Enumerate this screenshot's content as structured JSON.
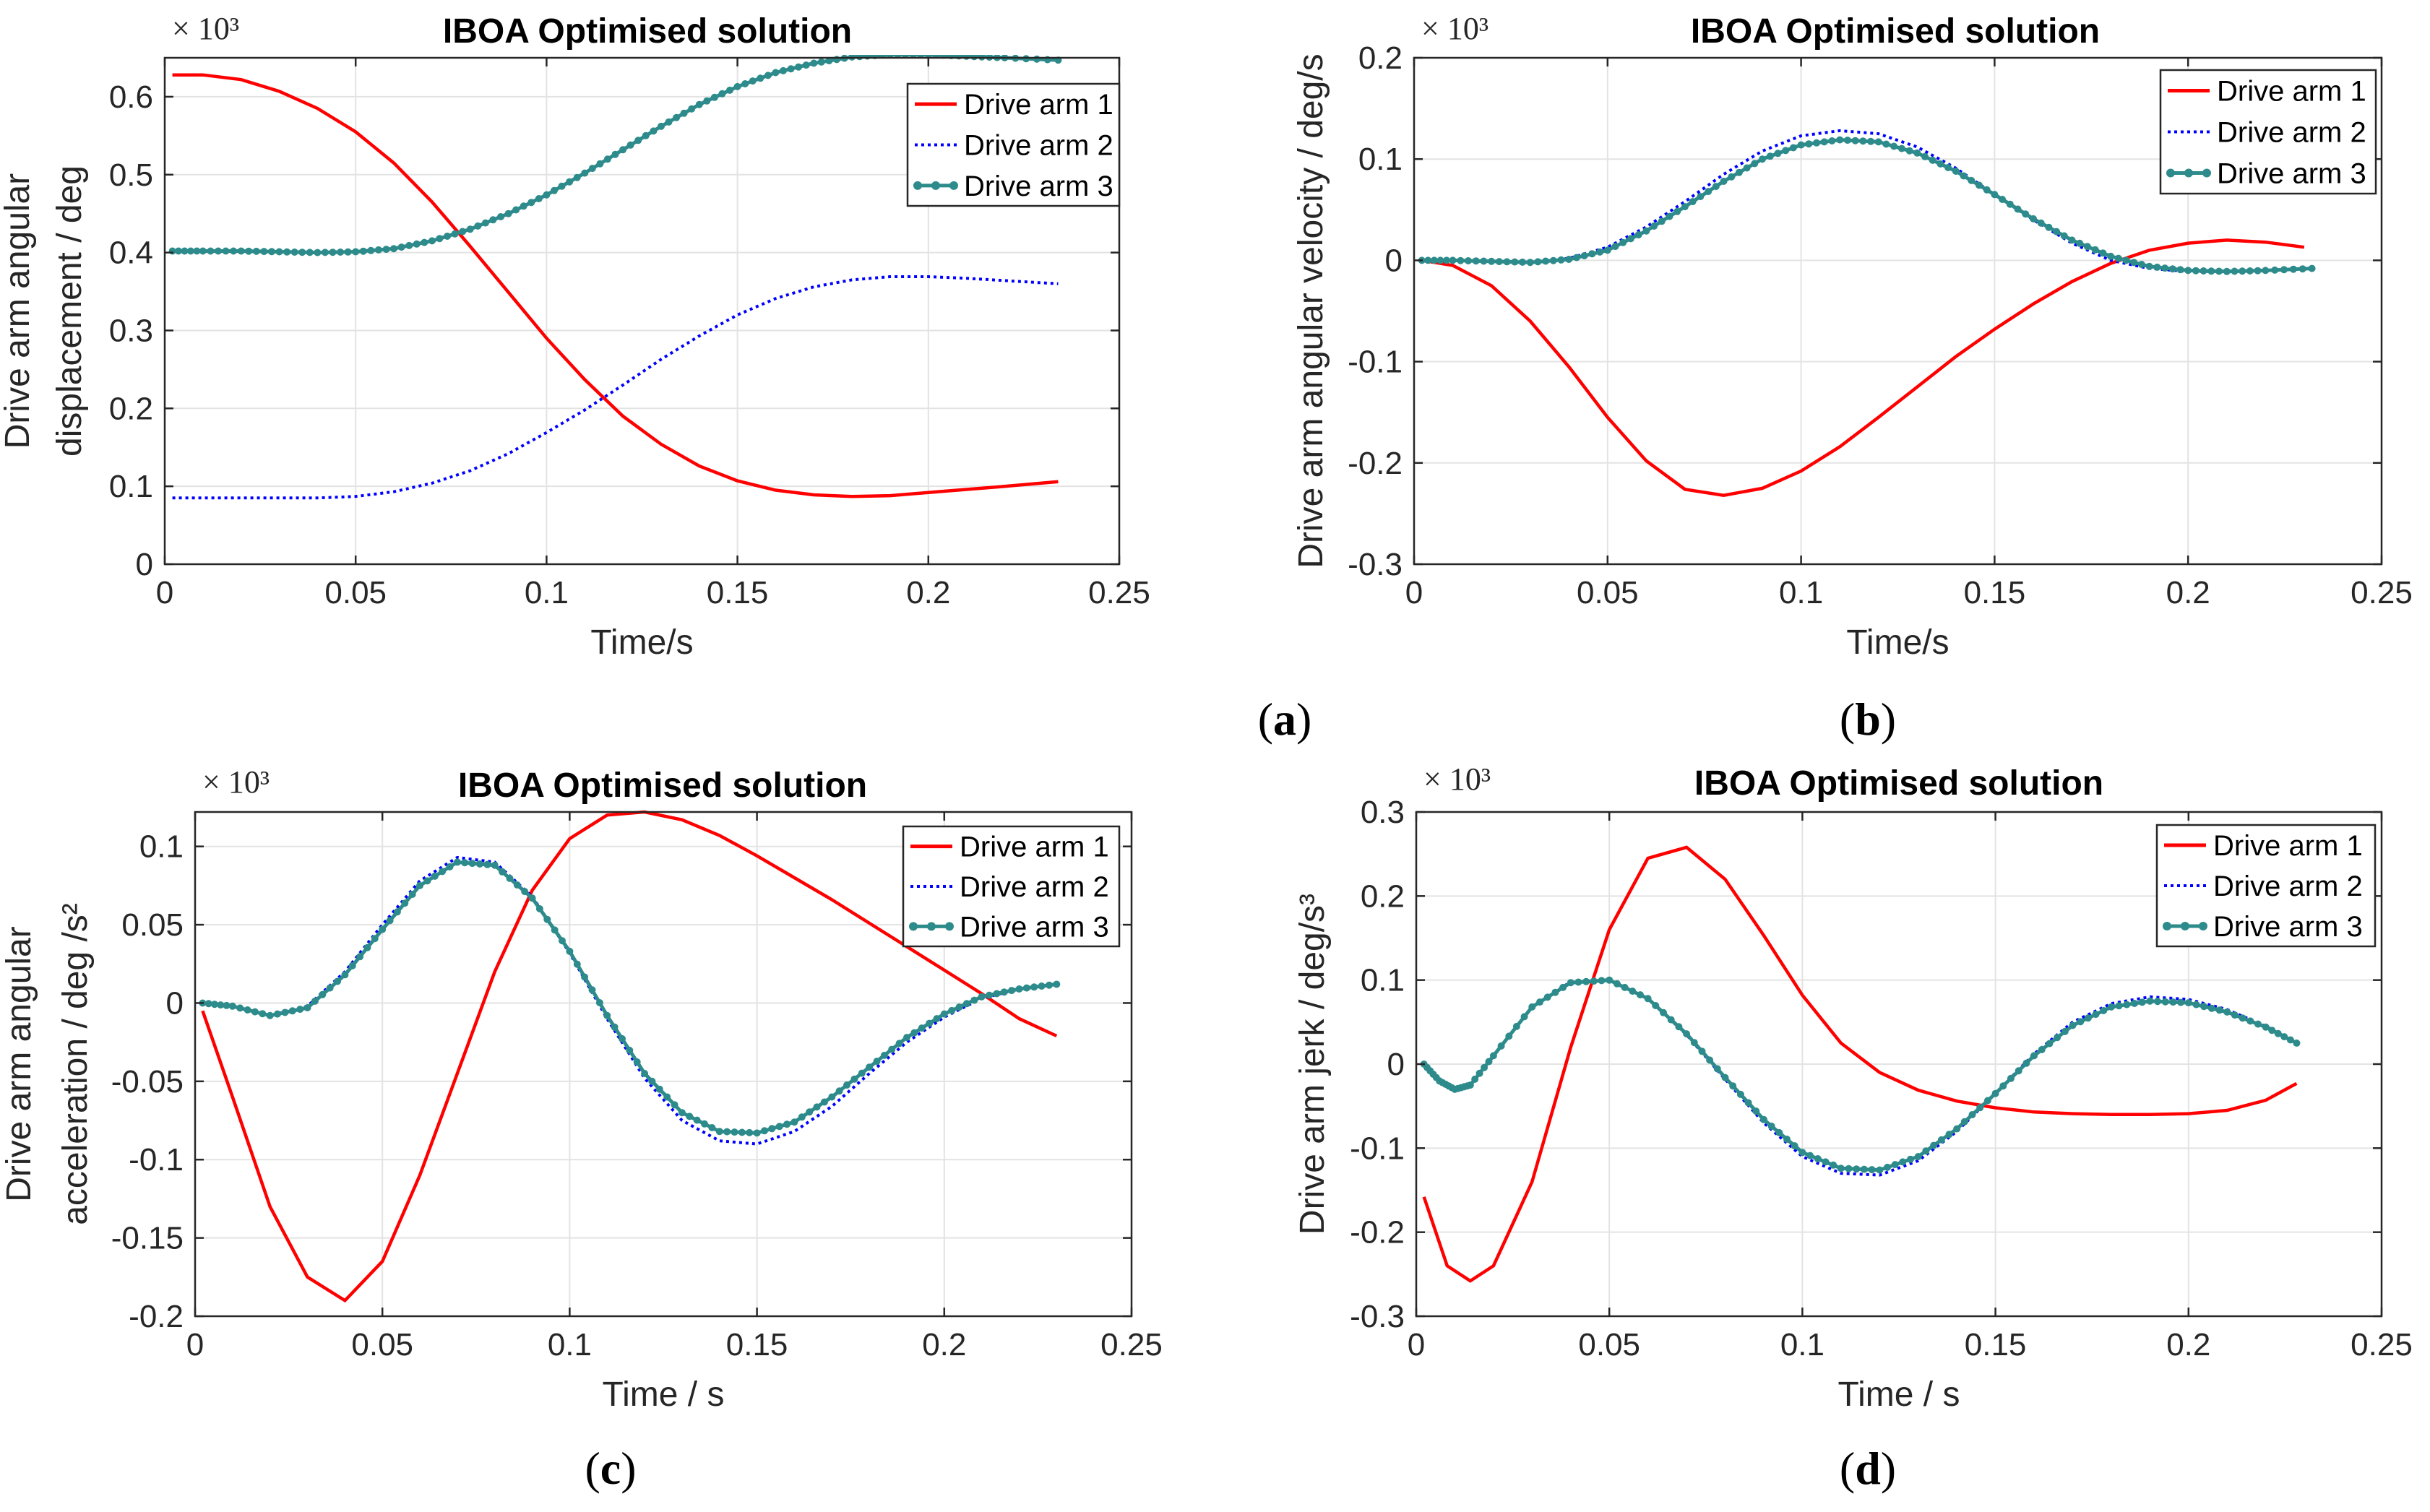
{
  "figure": {
    "panel_labels": [
      "(a)",
      "(b)",
      "(c)",
      "(d)"
    ]
  },
  "chart_data": [
    {
      "type": "line",
      "title": "IBOA  Optimised solution",
      "multiplier": "× 10³",
      "xlabel": "Time/s",
      "ylabel": [
        "Drive arm angular",
        "displacement / deg"
      ],
      "xlim": [
        0,
        0.25
      ],
      "ylim": [
        0,
        0.65
      ],
      "xticks": [
        "0",
        "0.05",
        "0.1",
        "0.15",
        "0.2",
        "0.25"
      ],
      "xtick_values": [
        0,
        0.05,
        0.1,
        0.15,
        0.2,
        0.25
      ],
      "yticks": [
        "0",
        "0.1",
        "0.2",
        "0.3",
        "0.4",
        "0.5",
        "0.6"
      ],
      "ytick_values": [
        0,
        0.1,
        0.2,
        0.3,
        0.4,
        0.5,
        0.6
      ],
      "legend": "top-right",
      "series": [
        {
          "name": "Drive arm 1",
          "color": "#ff0000",
          "style": "solid",
          "x": [
            0.002,
            0.01,
            0.02,
            0.03,
            0.04,
            0.05,
            0.06,
            0.07,
            0.08,
            0.09,
            0.1,
            0.11,
            0.12,
            0.13,
            0.14,
            0.15,
            0.16,
            0.17,
            0.18,
            0.19,
            0.2,
            0.21,
            0.22,
            0.234
          ],
          "y": [
            0.628,
            0.628,
            0.622,
            0.607,
            0.585,
            0.555,
            0.515,
            0.465,
            0.408,
            0.349,
            0.29,
            0.237,
            0.19,
            0.154,
            0.126,
            0.107,
            0.095,
            0.089,
            0.087,
            0.088,
            0.092,
            0.096,
            0.1,
            0.106
          ]
        },
        {
          "name": "Drive arm 2",
          "color": "#0000ff",
          "style": "dotted",
          "x": [
            0.002,
            0.01,
            0.02,
            0.03,
            0.04,
            0.05,
            0.06,
            0.07,
            0.08,
            0.09,
            0.1,
            0.11,
            0.12,
            0.13,
            0.14,
            0.15,
            0.16,
            0.17,
            0.18,
            0.19,
            0.2,
            0.21,
            0.22,
            0.234
          ],
          "y": [
            0.085,
            0.085,
            0.085,
            0.085,
            0.085,
            0.087,
            0.093,
            0.104,
            0.12,
            0.142,
            0.169,
            0.198,
            0.23,
            0.263,
            0.293,
            0.32,
            0.341,
            0.356,
            0.365,
            0.369,
            0.369,
            0.367,
            0.364,
            0.36
          ]
        },
        {
          "name": "Drive arm 3",
          "color": "#2e8b8b",
          "style": "marker",
          "x": [
            0.002,
            0.01,
            0.02,
            0.03,
            0.04,
            0.05,
            0.06,
            0.07,
            0.08,
            0.09,
            0.1,
            0.11,
            0.12,
            0.13,
            0.14,
            0.15,
            0.16,
            0.17,
            0.18,
            0.19,
            0.2,
            0.21,
            0.22,
            0.234
          ],
          "y": [
            0.402,
            0.402,
            0.402,
            0.401,
            0.4,
            0.401,
            0.405,
            0.415,
            0.43,
            0.45,
            0.474,
            0.502,
            0.532,
            0.562,
            0.59,
            0.613,
            0.631,
            0.643,
            0.651,
            0.654,
            0.654,
            0.652,
            0.65,
            0.647
          ]
        }
      ]
    },
    {
      "type": "line",
      "title": "IBOA  Optimised solution",
      "multiplier": "× 10³",
      "xlabel": "Time/s",
      "ylabel": [
        "Drive arm angular velocity / deg/s"
      ],
      "xlim": [
        0,
        0.25
      ],
      "ylim": [
        -0.3,
        0.2
      ],
      "xticks": [
        "0",
        "0.05",
        "0.1",
        "0.15",
        "0.2",
        "0.25"
      ],
      "xtick_values": [
        0,
        0.05,
        0.1,
        0.15,
        0.2,
        0.25
      ],
      "yticks": [
        "-0.3",
        "-0.2",
        "-0.1",
        "0",
        "0.1",
        "0.2"
      ],
      "ytick_values": [
        -0.3,
        -0.2,
        -0.1,
        0,
        0.1,
        0.2
      ],
      "legend": "top-right",
      "series": [
        {
          "name": "Drive arm 1",
          "color": "#ff0000",
          "style": "solid",
          "x": [
            0.002,
            0.01,
            0.02,
            0.03,
            0.04,
            0.05,
            0.06,
            0.07,
            0.08,
            0.09,
            0.1,
            0.11,
            0.12,
            0.13,
            0.14,
            0.15,
            0.16,
            0.17,
            0.18,
            0.19,
            0.2,
            0.21,
            0.22,
            0.23
          ],
          "y": [
            0,
            -0.005,
            -0.025,
            -0.06,
            -0.105,
            -0.155,
            -0.198,
            -0.226,
            -0.232,
            -0.225,
            -0.208,
            -0.184,
            -0.155,
            -0.125,
            -0.095,
            -0.068,
            -0.043,
            -0.021,
            -0.003,
            0.01,
            0.017,
            0.02,
            0.018,
            0.013
          ]
        },
        {
          "name": "Drive arm 2",
          "color": "#0000ff",
          "style": "dotted",
          "x": [
            0.002,
            0.01,
            0.02,
            0.03,
            0.04,
            0.05,
            0.06,
            0.07,
            0.08,
            0.09,
            0.1,
            0.11,
            0.12,
            0.13,
            0.14,
            0.15,
            0.16,
            0.17,
            0.18,
            0.19,
            0.2,
            0.21,
            0.22,
            0.232
          ],
          "y": [
            0,
            0,
            -0.001,
            -0.002,
            0.002,
            0.013,
            0.033,
            0.058,
            0.085,
            0.108,
            0.123,
            0.128,
            0.125,
            0.112,
            0.091,
            0.065,
            0.04,
            0.017,
            0,
            -0.008,
            -0.011,
            -0.011,
            -0.01,
            -0.008
          ]
        },
        {
          "name": "Drive arm 3",
          "color": "#2e8b8b",
          "style": "marker",
          "x": [
            0.002,
            0.01,
            0.02,
            0.03,
            0.04,
            0.05,
            0.06,
            0.07,
            0.08,
            0.09,
            0.1,
            0.11,
            0.12,
            0.13,
            0.14,
            0.15,
            0.16,
            0.17,
            0.18,
            0.19,
            0.2,
            0.21,
            0.22,
            0.232
          ],
          "y": [
            0,
            0,
            -0.001,
            -0.002,
            0.001,
            0.01,
            0.029,
            0.053,
            0.078,
            0.1,
            0.114,
            0.119,
            0.117,
            0.106,
            0.088,
            0.065,
            0.041,
            0.02,
            0.004,
            -0.006,
            -0.01,
            -0.011,
            -0.01,
            -0.008
          ]
        }
      ]
    },
    {
      "type": "line",
      "title": "IBOA  Optimised solution",
      "multiplier": "× 10³",
      "xlabel": "Time / s",
      "ylabel": [
        "Drive arm angular",
        "acceleration / deg /s²"
      ],
      "xlim": [
        0,
        0.25
      ],
      "ylim": [
        -0.2,
        0.122
      ],
      "xticks": [
        "0",
        "0.05",
        "0.1",
        "0.15",
        "0.2",
        "0.25"
      ],
      "xtick_values": [
        0,
        0.05,
        0.1,
        0.15,
        0.2,
        0.25
      ],
      "yticks": [
        "-0.2",
        "-0.15",
        "-0.1",
        "-0.05",
        "0",
        "0.05",
        "0.1"
      ],
      "ytick_values": [
        -0.2,
        -0.15,
        -0.1,
        -0.05,
        0,
        0.05,
        0.1
      ],
      "legend": "top-right",
      "series": [
        {
          "name": "Drive arm 1",
          "color": "#ff0000",
          "style": "solid",
          "x": [
            0.002,
            0.01,
            0.02,
            0.03,
            0.04,
            0.05,
            0.06,
            0.07,
            0.08,
            0.09,
            0.1,
            0.11,
            0.12,
            0.13,
            0.14,
            0.15,
            0.16,
            0.17,
            0.18,
            0.19,
            0.2,
            0.21,
            0.22,
            0.23
          ],
          "y": [
            -0.005,
            -0.06,
            -0.13,
            -0.175,
            -0.19,
            -0.165,
            -0.11,
            -0.045,
            0.02,
            0.072,
            0.105,
            0.12,
            0.122,
            0.117,
            0.107,
            0.094,
            0.08,
            0.066,
            0.051,
            0.036,
            0.021,
            0.006,
            -0.01,
            -0.021
          ]
        },
        {
          "name": "Drive arm 2",
          "color": "#0000ff",
          "style": "dotted",
          "x": [
            0.002,
            0.01,
            0.02,
            0.03,
            0.04,
            0.05,
            0.06,
            0.07,
            0.08,
            0.09,
            0.1,
            0.11,
            0.12,
            0.13,
            0.14,
            0.15,
            0.16,
            0.17,
            0.18,
            0.19,
            0.2,
            0.21,
            0.22,
            0.23
          ],
          "y": [
            0,
            -0.002,
            -0.008,
            -0.002,
            0.02,
            0.05,
            0.078,
            0.093,
            0.09,
            0.068,
            0.032,
            -0.01,
            -0.048,
            -0.075,
            -0.088,
            -0.09,
            -0.082,
            -0.066,
            -0.045,
            -0.025,
            -0.009,
            0.003,
            0.009,
            0.012
          ]
        },
        {
          "name": "Drive arm 3",
          "color": "#2e8b8b",
          "style": "marker",
          "x": [
            0.002,
            0.01,
            0.02,
            0.03,
            0.04,
            0.05,
            0.06,
            0.07,
            0.08,
            0.09,
            0.1,
            0.11,
            0.12,
            0.13,
            0.14,
            0.15,
            0.16,
            0.17,
            0.18,
            0.19,
            0.2,
            0.21,
            0.22,
            0.23
          ],
          "y": [
            0,
            -0.002,
            -0.008,
            -0.003,
            0.018,
            0.047,
            0.075,
            0.09,
            0.088,
            0.067,
            0.033,
            -0.008,
            -0.045,
            -0.07,
            -0.082,
            -0.083,
            -0.076,
            -0.06,
            -0.041,
            -0.022,
            -0.007,
            0.004,
            0.009,
            0.012
          ]
        }
      ]
    },
    {
      "type": "line",
      "title": "IBOA  Optimised solution",
      "multiplier": "× 10³",
      "xlabel": "Time / s",
      "ylabel": [
        "Drive arm jerk / deg/s³"
      ],
      "xlim": [
        0,
        0.25
      ],
      "ylim": [
        -0.3,
        0.3
      ],
      "xticks": [
        "0",
        "0.05",
        "0.1",
        "0.15",
        "0.2",
        "0.25"
      ],
      "xtick_values": [
        0,
        0.05,
        0.1,
        0.15,
        0.2,
        0.25
      ],
      "yticks": [
        "-0.3",
        "-0.2",
        "-0.1",
        "0",
        "0.1",
        "0.2",
        "0.3"
      ],
      "ytick_values": [
        -0.3,
        -0.2,
        -0.1,
        0,
        0.1,
        0.2,
        0.3
      ],
      "legend": "top-right",
      "series": [
        {
          "name": "Drive arm 1",
          "color": "#ff0000",
          "style": "solid",
          "x": [
            0.002,
            0.008,
            0.014,
            0.02,
            0.03,
            0.04,
            0.05,
            0.06,
            0.07,
            0.08,
            0.09,
            0.1,
            0.11,
            0.12,
            0.13,
            0.14,
            0.15,
            0.16,
            0.17,
            0.18,
            0.19,
            0.2,
            0.21,
            0.22,
            0.228
          ],
          "y": [
            -0.158,
            -0.24,
            -0.258,
            -0.24,
            -0.14,
            0.02,
            0.16,
            0.245,
            0.258,
            0.22,
            0.153,
            0.082,
            0.025,
            -0.01,
            -0.031,
            -0.044,
            -0.052,
            -0.057,
            -0.059,
            -0.06,
            -0.06,
            -0.059,
            -0.055,
            -0.043,
            -0.023
          ]
        },
        {
          "name": "Drive arm 2",
          "color": "#0000ff",
          "style": "dotted",
          "x": [
            0.002,
            0.006,
            0.01,
            0.014,
            0.02,
            0.03,
            0.04,
            0.05,
            0.06,
            0.07,
            0.08,
            0.09,
            0.1,
            0.11,
            0.12,
            0.13,
            0.14,
            0.15,
            0.16,
            0.17,
            0.18,
            0.19,
            0.2,
            0.21,
            0.22,
            0.228
          ],
          "y": [
            0,
            -0.02,
            -0.03,
            -0.025,
            0.01,
            0.068,
            0.098,
            0.1,
            0.078,
            0.035,
            -0.018,
            -0.07,
            -0.11,
            -0.13,
            -0.132,
            -0.115,
            -0.08,
            -0.035,
            0.012,
            0.05,
            0.072,
            0.08,
            0.077,
            0.065,
            0.045,
            0.025
          ]
        },
        {
          "name": "Drive arm 3",
          "color": "#2e8b8b",
          "style": "marker",
          "x": [
            0.002,
            0.006,
            0.01,
            0.014,
            0.02,
            0.03,
            0.04,
            0.05,
            0.06,
            0.07,
            0.08,
            0.09,
            0.1,
            0.11,
            0.12,
            0.13,
            0.14,
            0.15,
            0.16,
            0.17,
            0.18,
            0.19,
            0.2,
            0.21,
            0.22,
            0.228
          ],
          "y": [
            0,
            -0.02,
            -0.03,
            -0.025,
            0.01,
            0.068,
            0.097,
            0.1,
            0.078,
            0.036,
            -0.016,
            -0.066,
            -0.105,
            -0.124,
            -0.126,
            -0.11,
            -0.077,
            -0.035,
            0.01,
            0.046,
            0.068,
            0.075,
            0.073,
            0.062,
            0.044,
            0.025
          ]
        }
      ]
    }
  ]
}
